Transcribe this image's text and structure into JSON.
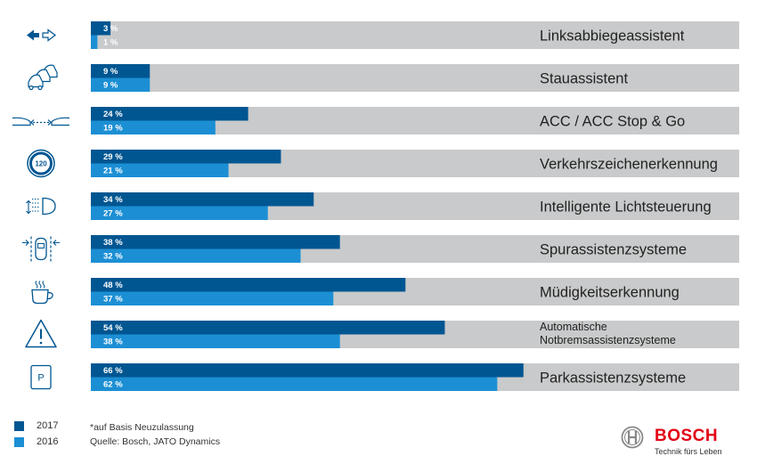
{
  "chart_data": {
    "type": "bar",
    "orientation": "horizontal",
    "xlim": [
      0,
      100
    ],
    "value_suffix": " %",
    "categories": [
      "Linksabbiegeassistent",
      "Stauassistent",
      "ACC / ACC Stop & Go",
      "Verkehrszeichenerkennung",
      "Intelligente Lichtsteuerung",
      "Spurassistenzsysteme",
      "Müdigkeitserkennung",
      "Automatische Notbremsassistenzsysteme",
      "Parkassistenzsysteme"
    ],
    "label_lines": [
      [
        "Linksabbiegeassistent"
      ],
      [
        "Stauassistent"
      ],
      [
        "ACC / ACC Stop & Go"
      ],
      [
        "Verkehrszeichenerkennung"
      ],
      [
        "Intelligente Lichtsteuerung"
      ],
      [
        "Spurassistenzsysteme"
      ],
      [
        "Müdigkeitserkennung"
      ],
      [
        "Automatische",
        "Notbremsassistenzsysteme"
      ],
      [
        "Parkassistenzsysteme"
      ]
    ],
    "icons": [
      "turn-arrow-icon",
      "traffic-jam-icon",
      "acc-distance-icon",
      "speed-sign-icon",
      "headlight-icon",
      "lane-car-icon",
      "coffee-cup-icon",
      "warning-triangle-icon",
      "parking-icon"
    ],
    "series": [
      {
        "name": "2017",
        "color": "#005691",
        "values": [
          3,
          9,
          24,
          29,
          34,
          38,
          48,
          54,
          66
        ]
      },
      {
        "name": "2016",
        "color": "#1c8fd4",
        "values": [
          1,
          9,
          19,
          21,
          27,
          32,
          37,
          38,
          62
        ]
      }
    ],
    "track_color": "#c9cacb",
    "legend_placement": "bottom-left"
  },
  "legend": [
    {
      "label": "2017",
      "color": "#005691"
    },
    {
      "label": "2016",
      "color": "#1c8fd4"
    }
  ],
  "notes": {
    "basis": "*auf Basis Neuzulassung",
    "source": "Quelle: Bosch, JATO Dynamics"
  },
  "brand": {
    "name": "BOSCH",
    "slogan": "Technik fürs Leben",
    "color": "#e20015"
  }
}
